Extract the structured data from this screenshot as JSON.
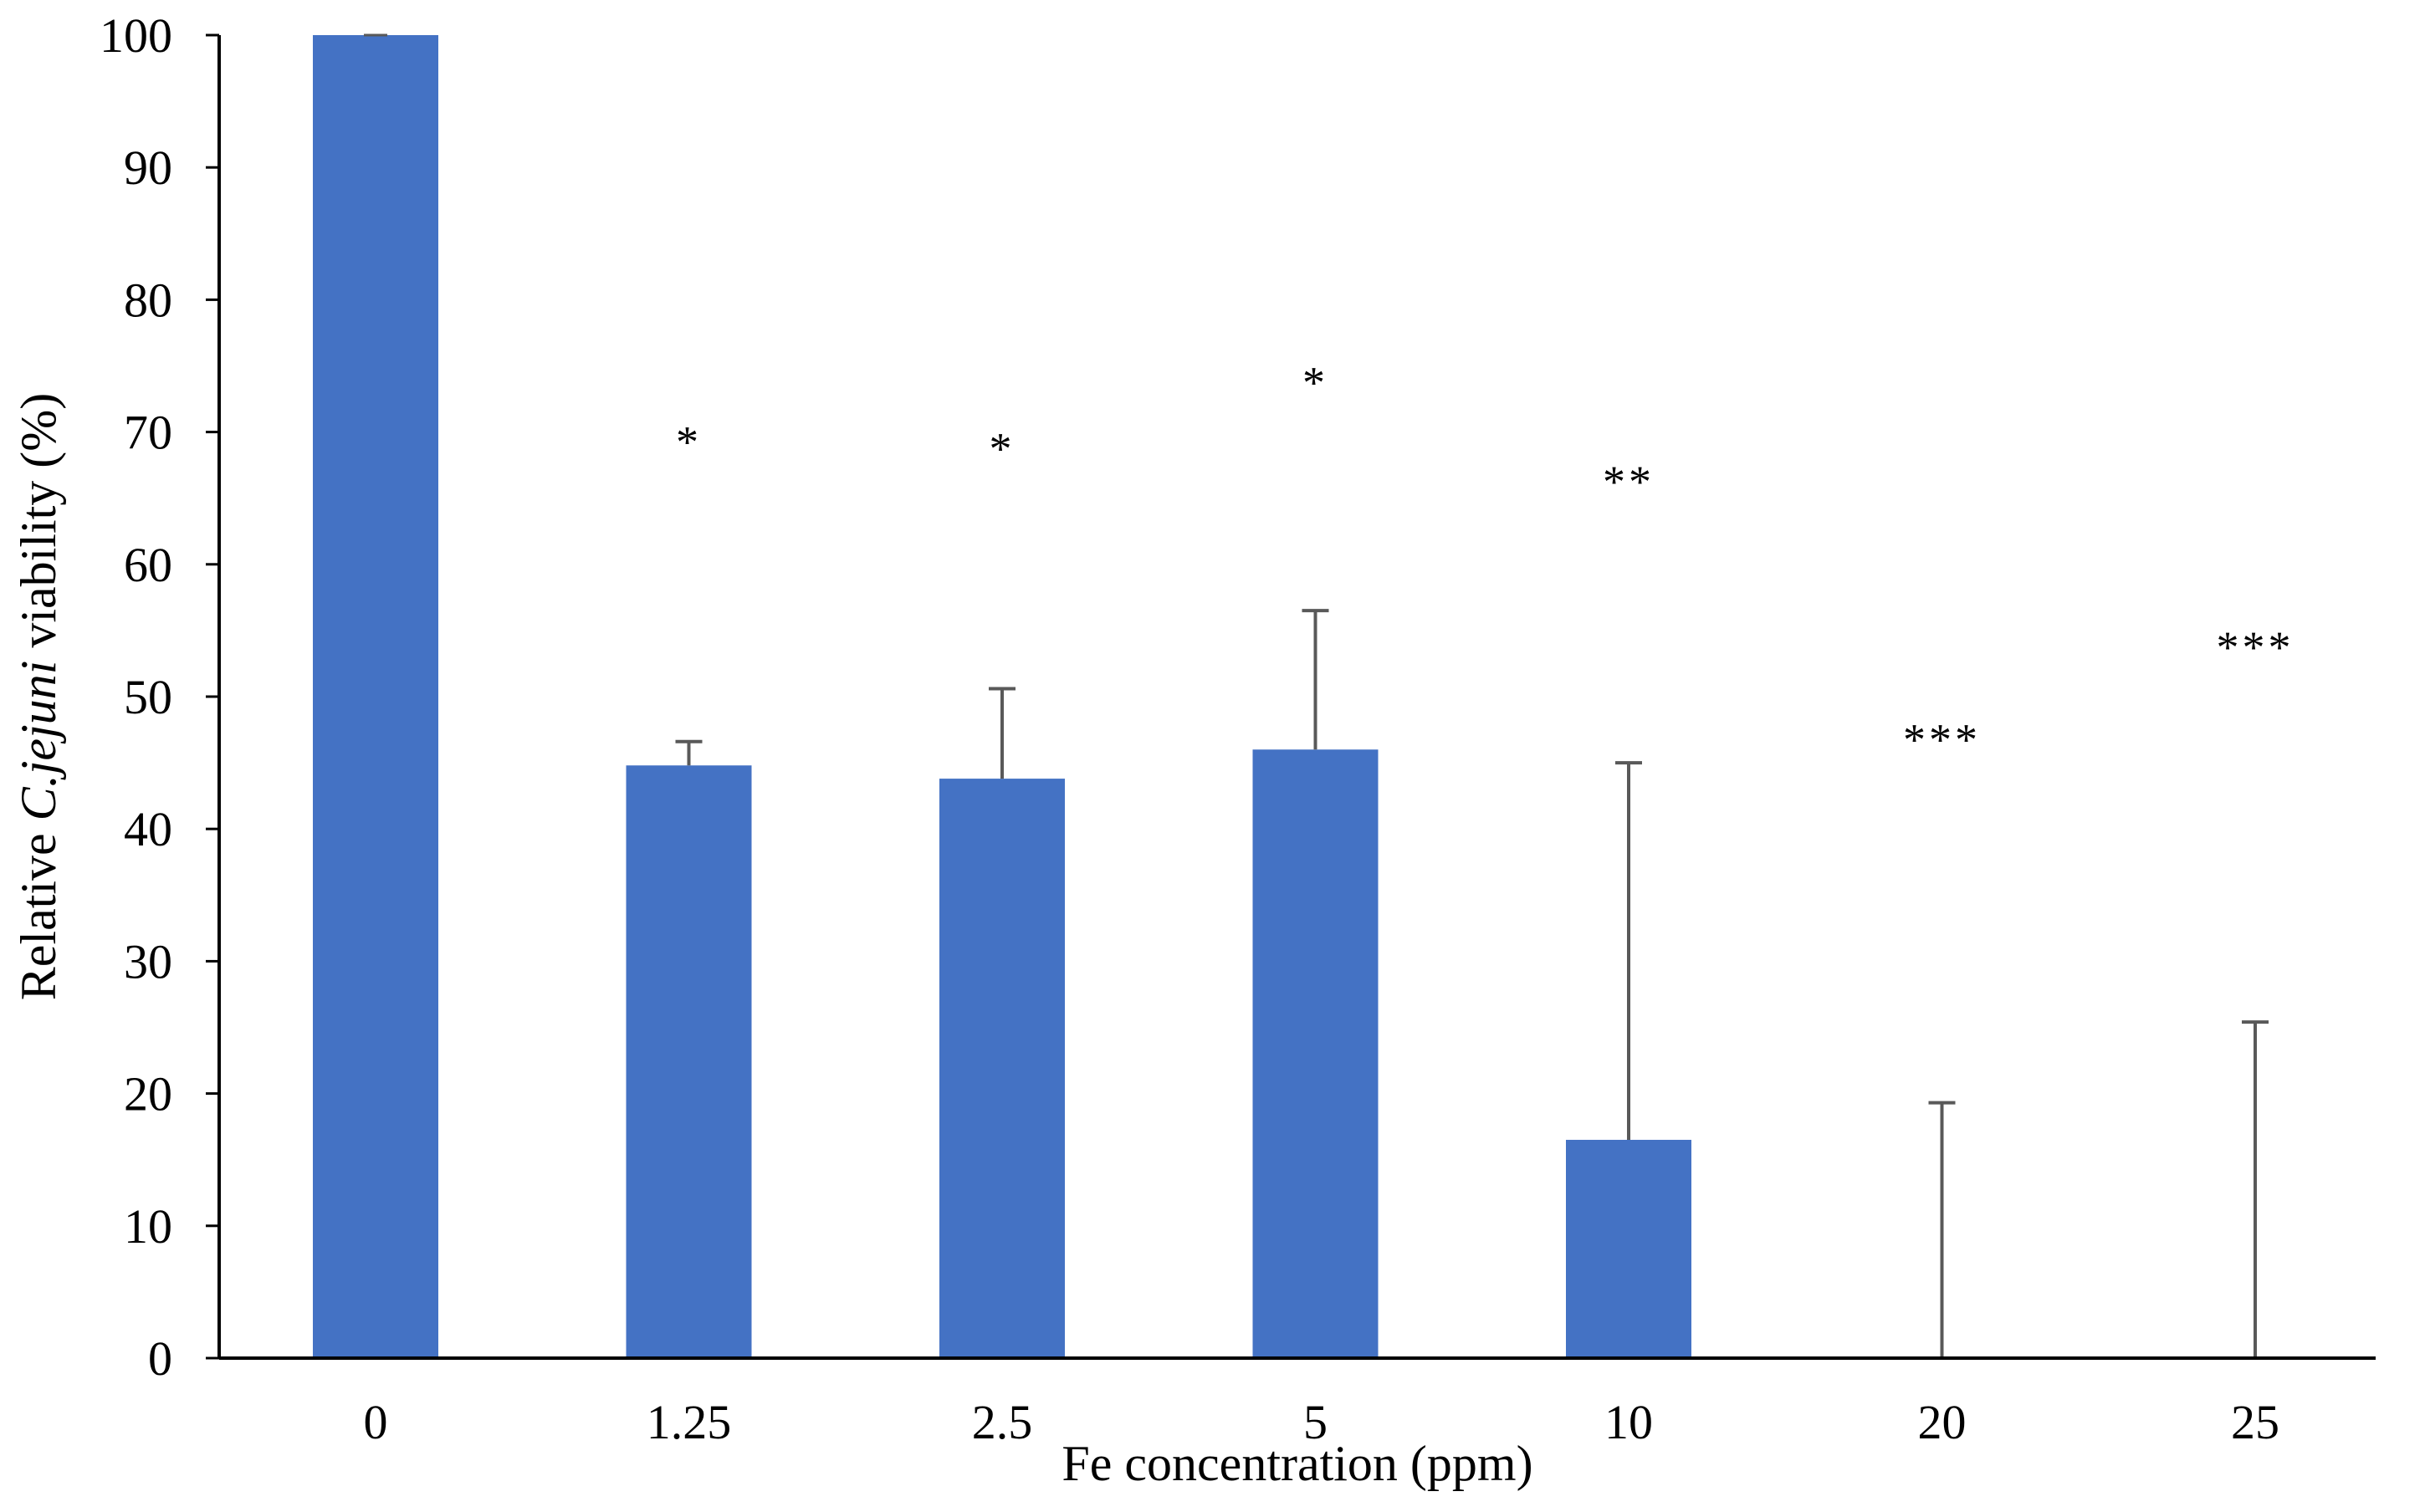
{
  "chart_data": {
    "type": "bar",
    "title": "",
    "xlabel": "Fe concentration (ppm)",
    "ylabel": {
      "prefix": "Relative ",
      "italic": "C.jejuni",
      "suffix": " viability (%)"
    },
    "ylim": [
      0,
      100
    ],
    "yticks": [
      0,
      10,
      20,
      30,
      40,
      50,
      60,
      70,
      80,
      90,
      100
    ],
    "categories": [
      "0",
      "1.25",
      "2.5",
      "5",
      "10",
      "20",
      "25"
    ],
    "series": [
      {
        "name": "Relative C.jejuni viability",
        "values": [
          100,
          44.8,
          43.8,
          46,
          16.5,
          0,
          0
        ],
        "error_upper": [
          0,
          1.8,
          6.8,
          10.5,
          28.5,
          19.3,
          25.4
        ]
      }
    ],
    "significance": [
      "",
      "*",
      "*",
      "*",
      "**",
      "***",
      "***"
    ],
    "significance_values": [
      null,
      70,
      69.5,
      74.5,
      67,
      47.5,
      54.5
    ],
    "grid": false,
    "legend": "none",
    "colors": {
      "bar": "#4472C4",
      "error_bar": "#595959",
      "axis": "#000000"
    }
  }
}
